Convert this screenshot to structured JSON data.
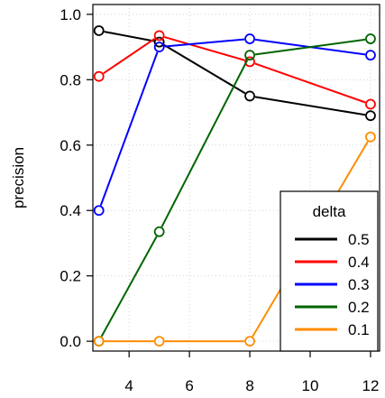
{
  "chart_data": {
    "type": "line",
    "title": "",
    "xlabel": "",
    "ylabel": "precision",
    "x": [
      3,
      5,
      8,
      12
    ],
    "xlim": [
      2.8,
      12.3
    ],
    "ylim": [
      -0.03,
      1.03
    ],
    "x_ticks": [
      4,
      6,
      8,
      10,
      12
    ],
    "y_ticks": [
      0.0,
      0.2,
      0.4,
      0.6,
      0.8,
      1.0
    ],
    "y_tick_labels": [
      "0.0",
      "0.2",
      "0.4",
      "0.6",
      "0.8",
      "1.0"
    ],
    "grid": true,
    "legend": {
      "title": "delta",
      "position": "bottom-right"
    },
    "series": [
      {
        "name": "0.5",
        "color": "#000000",
        "values": [
          0.95,
          0.915,
          0.75,
          0.69
        ]
      },
      {
        "name": "0.4",
        "color": "#ff0000",
        "values": [
          0.81,
          0.935,
          0.855,
          0.725
        ]
      },
      {
        "name": "0.3",
        "color": "#0000ff",
        "values": [
          0.4,
          0.9,
          0.925,
          0.875
        ]
      },
      {
        "name": "0.2",
        "color": "#006400",
        "values": [
          0.0,
          0.335,
          0.875,
          0.925
        ]
      },
      {
        "name": "0.1",
        "color": "#ff8c00",
        "values": [
          0.0,
          0.0,
          0.0,
          0.625
        ]
      }
    ]
  }
}
